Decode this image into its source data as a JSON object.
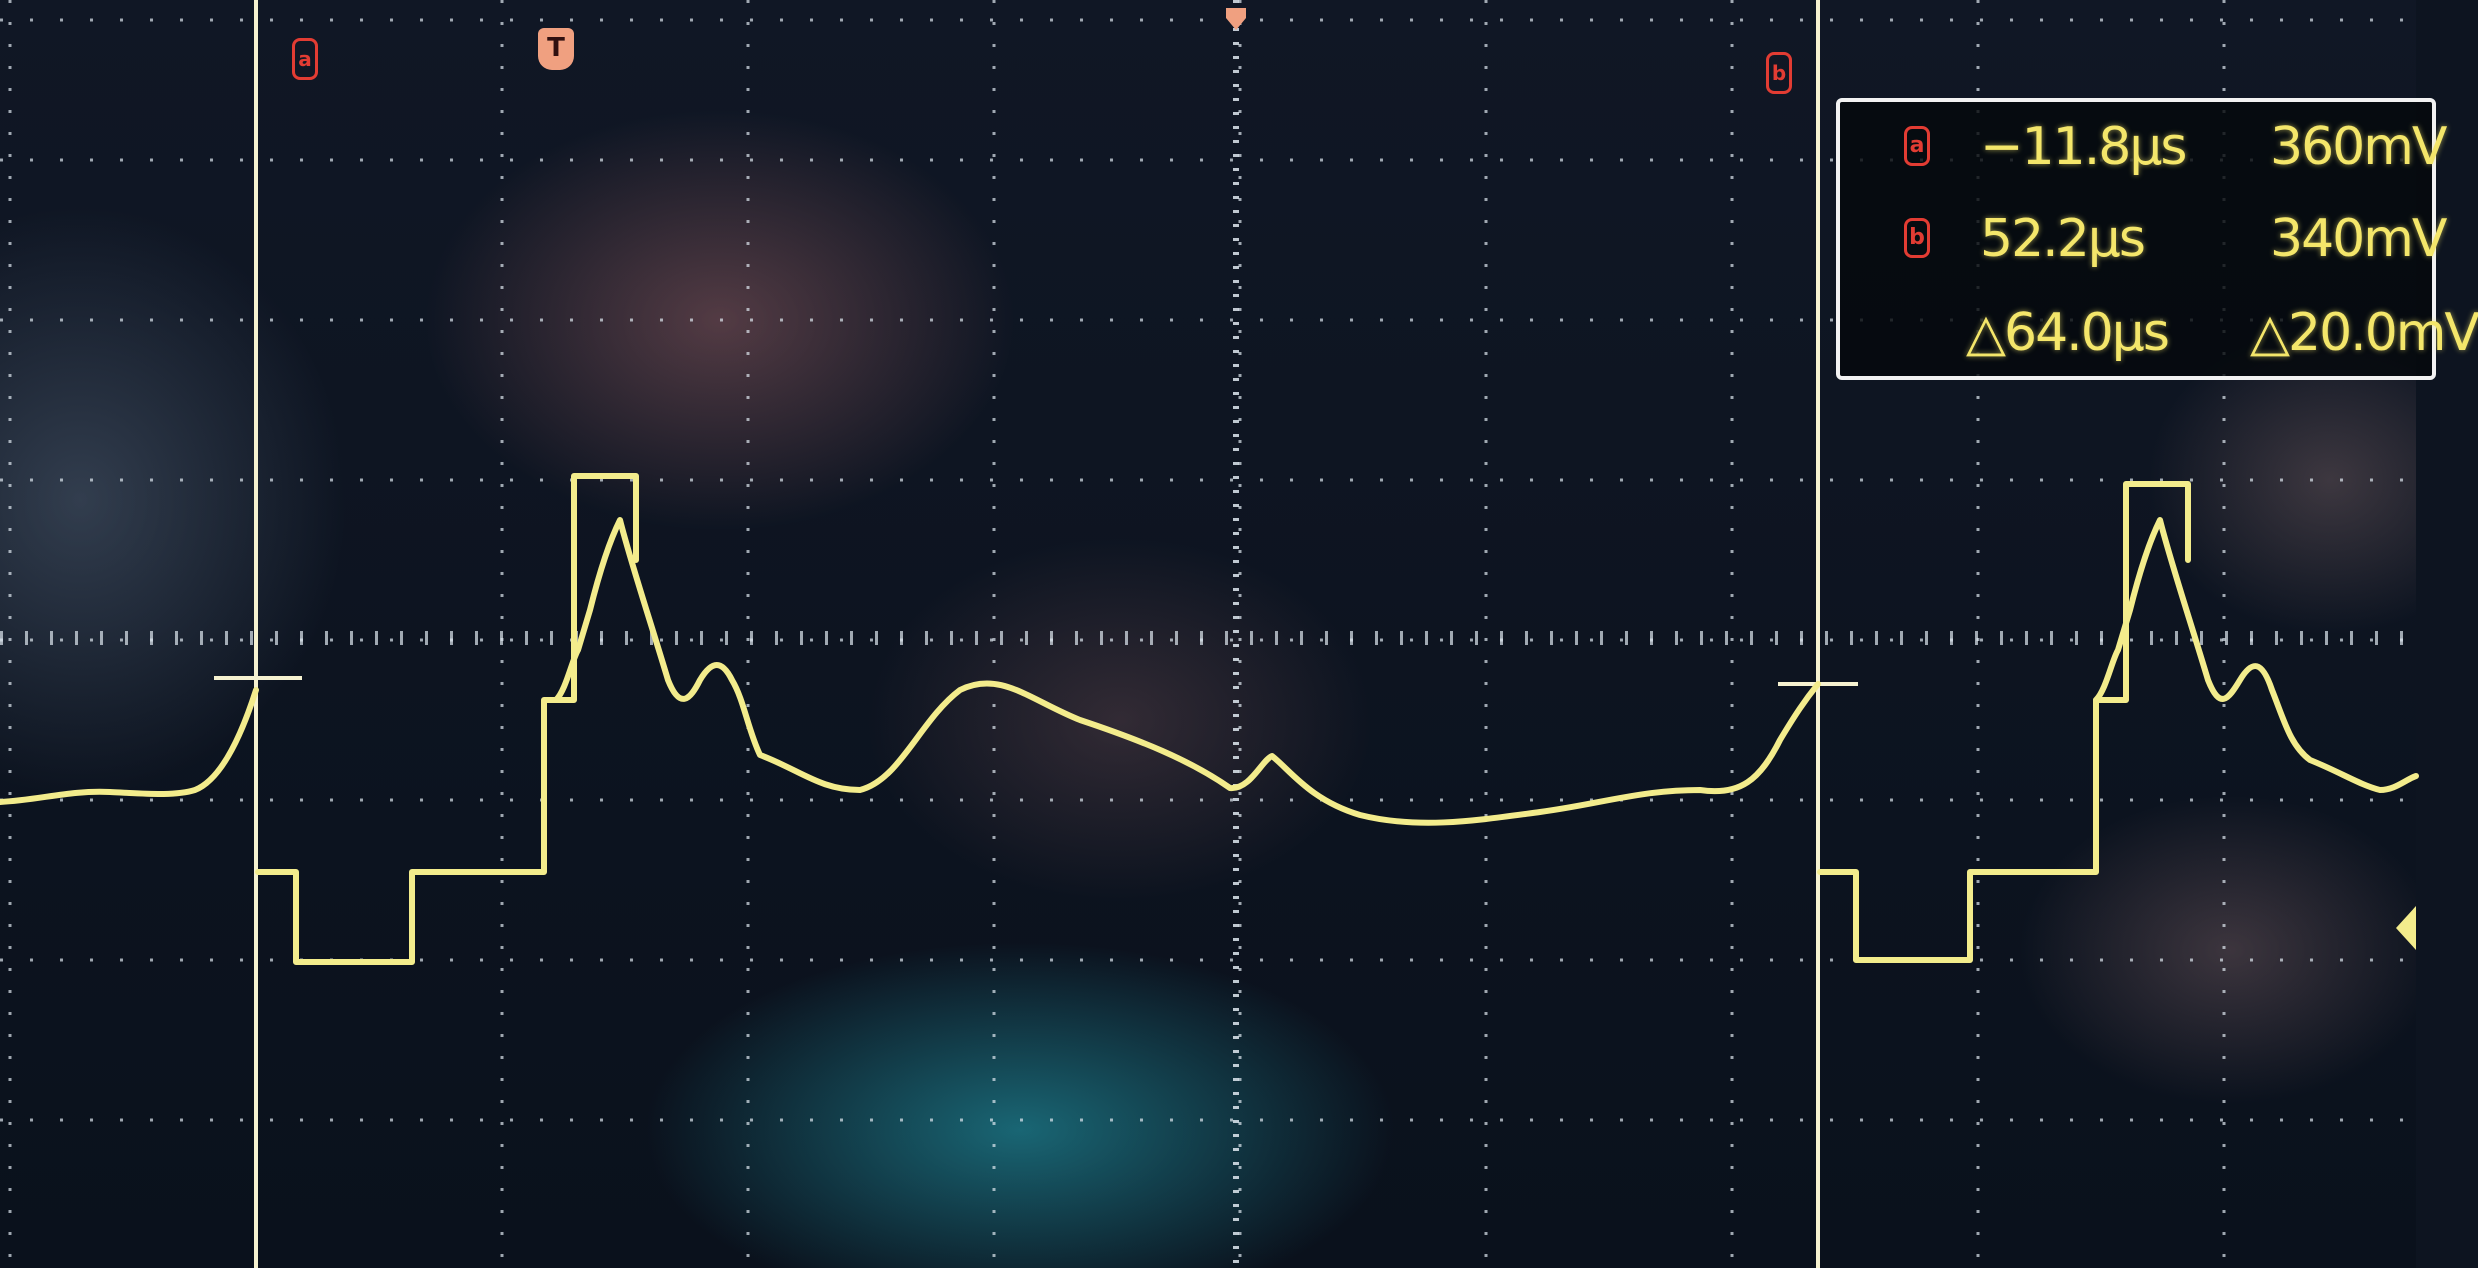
{
  "readout": {
    "cursor_a": {
      "label": "a",
      "time": "−11.8µs",
      "voltage": "360mV"
    },
    "cursor_b": {
      "label": "b",
      "time": "52.2µs",
      "voltage": "340mV"
    },
    "delta": {
      "time": "△64.0µs",
      "voltage": "△20.0mV"
    }
  },
  "markers": {
    "cursor_a": "a",
    "cursor_b": "b",
    "trigger": "T"
  },
  "colors": {
    "trace": "#f3ec8c",
    "cursor_line": "#f6f2d0",
    "marker": "#e23c33",
    "grid": "#dfe8f0"
  }
}
